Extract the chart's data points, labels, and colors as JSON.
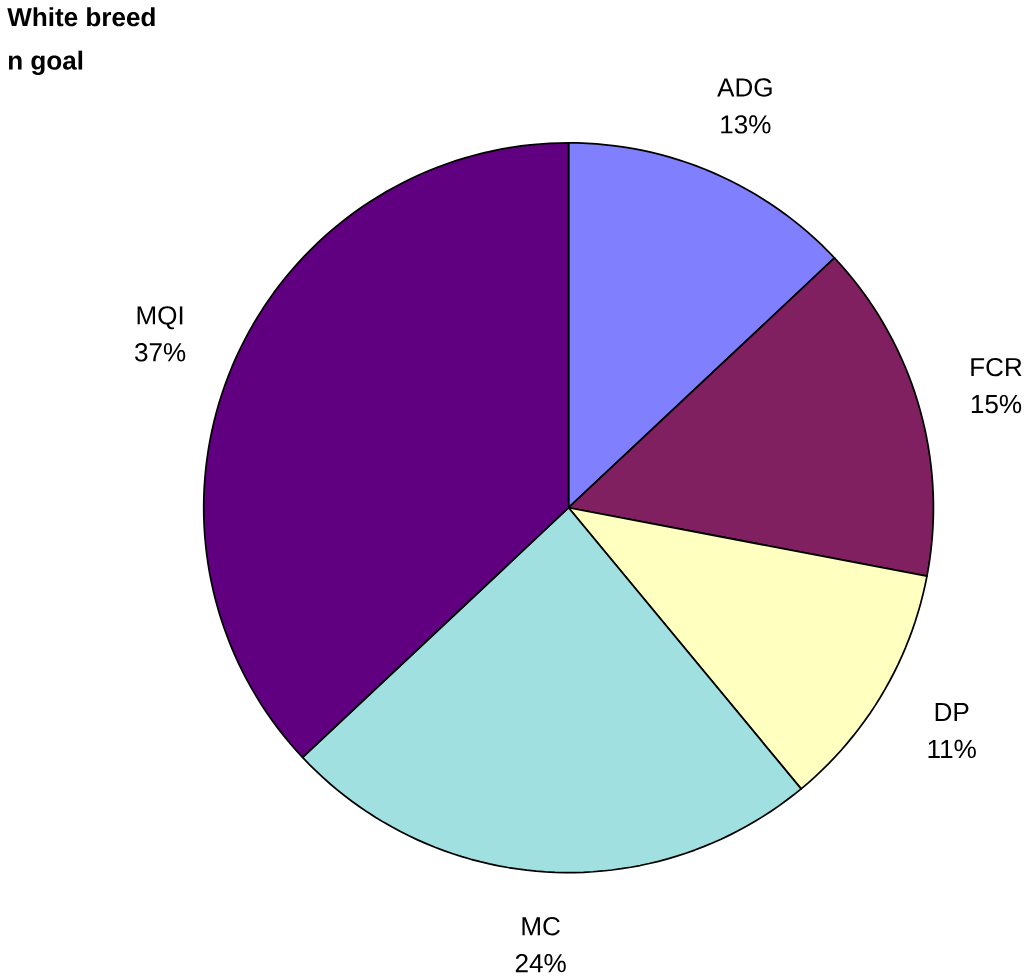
{
  "chart_data": {
    "type": "pie",
    "title": "White breed",
    "subtitle": "n goal",
    "categories": [
      "ADG",
      "FCR",
      "DP",
      "MC",
      "MQI"
    ],
    "values": [
      13,
      15,
      11,
      24,
      37
    ],
    "value_labels": [
      "13%",
      "15%",
      "11%",
      "24%",
      "37%"
    ],
    "colors": [
      "#8080ff",
      "#802060",
      "#ffffc0",
      "#a0e0e0",
      "#600080"
    ]
  }
}
